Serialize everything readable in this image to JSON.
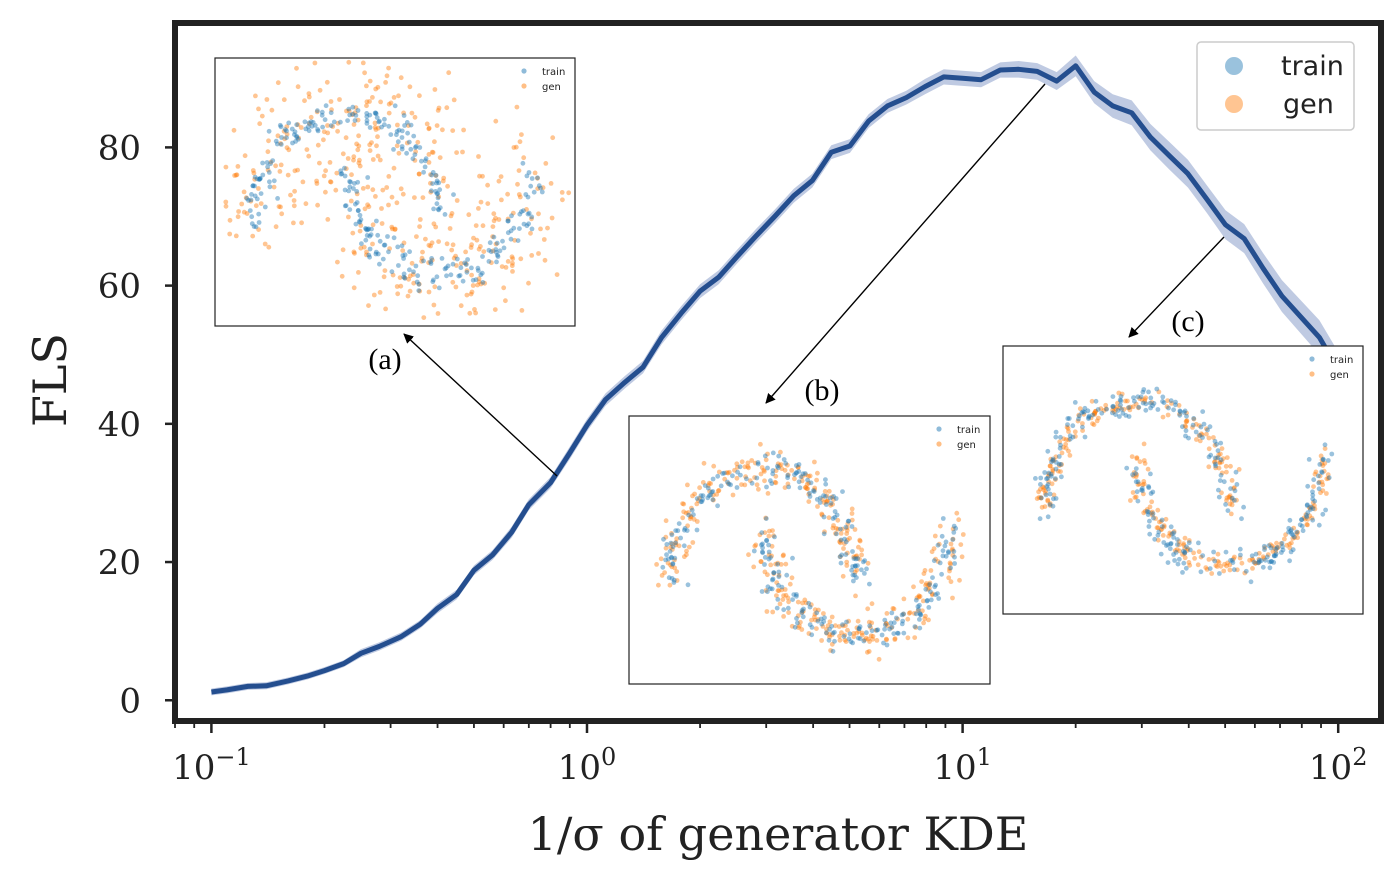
{
  "chart_data": {
    "type": "line",
    "title": "",
    "xlabel": "1/σ of generator KDE",
    "ylabel": "FLS",
    "xscale": "log",
    "xlim": [
      0.08,
      130
    ],
    "ylim": [
      -3,
      98
    ],
    "grid": false,
    "legend_position": "top-right",
    "x_ticks": [
      {
        "base": "10",
        "exp": "−1",
        "value": 0.1
      },
      {
        "base": "10",
        "exp": "0",
        "value": 1
      },
      {
        "base": "10",
        "exp": "1",
        "value": 10
      },
      {
        "base": "10",
        "exp": "2",
        "value": 100
      }
    ],
    "y_ticks": [
      0,
      20,
      40,
      60,
      80
    ],
    "legend": [
      {
        "label": "train",
        "color": "#1f77b4"
      },
      {
        "label": "gen",
        "color": "#ff7f0e"
      }
    ],
    "line_color": "#244e8f",
    "band_color": "#aab8d8",
    "series": [
      {
        "x": [
          0.1,
          0.11,
          0.125,
          0.14,
          0.16,
          0.18,
          0.2,
          0.225,
          0.25,
          0.28,
          0.32,
          0.36,
          0.4,
          0.45,
          0.5,
          0.56,
          0.63,
          0.7,
          0.8,
          0.9,
          1.0,
          1.12,
          1.26,
          1.41,
          1.58,
          1.78,
          2.0,
          2.24,
          2.51,
          2.82,
          3.16,
          3.55,
          3.98,
          4.47,
          5.01,
          5.62,
          6.31,
          7.08,
          7.94,
          8.91,
          10.0,
          11.2,
          12.6,
          14.1,
          15.8,
          17.8,
          20.0,
          22.4,
          25.1,
          28.2,
          31.6,
          35.5,
          39.8,
          44.7,
          50.1,
          56.2,
          63.1,
          70.8,
          79.4,
          89.1,
          100
        ],
        "y": [
          1.2,
          1.5,
          2.0,
          2.1,
          2.8,
          3.5,
          4.3,
          5.3,
          6.8,
          7.8,
          9.2,
          11.0,
          13.3,
          15.3,
          18.8,
          21.0,
          24.3,
          28.3,
          31.5,
          35.8,
          39.8,
          43.5,
          46.0,
          48.2,
          52.5,
          56.0,
          59.2,
          61.2,
          64.2,
          67.2,
          70.0,
          73.0,
          75.2,
          79.3,
          80.2,
          83.8,
          86.0,
          87.2,
          88.8,
          90.2,
          90.0,
          89.8,
          91.2,
          91.3,
          91.0,
          89.6,
          91.8,
          88.0,
          86.0,
          85.0,
          81.5,
          78.8,
          76.2,
          72.5,
          68.8,
          66.8,
          62.5,
          58.5,
          55.5,
          52.5,
          47.8
        ],
        "band": [
          0.5,
          0.5,
          0.5,
          0.5,
          0.5,
          0.5,
          0.5,
          0.5,
          0.6,
          0.6,
          0.6,
          0.6,
          0.7,
          0.7,
          0.7,
          0.7,
          0.8,
          0.8,
          0.8,
          0.9,
          0.9,
          0.9,
          0.9,
          0.9,
          1.0,
          1.0,
          1.0,
          1.0,
          1.0,
          1.0,
          1.0,
          1.0,
          1.0,
          1.0,
          1.0,
          1.0,
          1.0,
          1.0,
          1.1,
          1.1,
          1.1,
          1.1,
          1.1,
          1.2,
          1.2,
          1.3,
          1.5,
          1.6,
          1.7,
          1.8,
          1.9,
          2.0,
          2.0,
          2.0,
          2.1,
          2.1,
          2.2,
          2.3,
          2.4,
          2.5,
          2.6
        ]
      }
    ],
    "annotations": [
      {
        "label": "(a)"
      },
      {
        "label": "(b)"
      },
      {
        "label": "(c)"
      }
    ],
    "insets": [
      {
        "type": "scatter",
        "legend": [
          "train",
          "gen"
        ]
      },
      {
        "type": "scatter",
        "legend": [
          "train",
          "gen"
        ]
      },
      {
        "type": "scatter",
        "legend": [
          "train",
          "gen"
        ]
      }
    ]
  }
}
